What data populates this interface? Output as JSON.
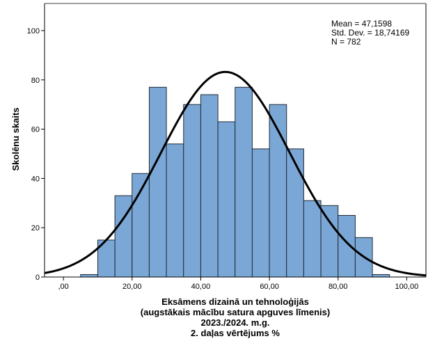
{
  "chart_data": {
    "type": "bar",
    "subtype": "histogram",
    "bin_width": 5,
    "bins": [
      {
        "from": 5,
        "to": 10,
        "count": 1
      },
      {
        "from": 10,
        "to": 15,
        "count": 15
      },
      {
        "from": 15,
        "to": 20,
        "count": 33
      },
      {
        "from": 20,
        "to": 25,
        "count": 42
      },
      {
        "from": 25,
        "to": 30,
        "count": 77
      },
      {
        "from": 30,
        "to": 35,
        "count": 54
      },
      {
        "from": 35,
        "to": 40,
        "count": 70
      },
      {
        "from": 40,
        "to": 45,
        "count": 74
      },
      {
        "from": 45,
        "to": 50,
        "count": 63
      },
      {
        "from": 50,
        "to": 55,
        "count": 77
      },
      {
        "from": 55,
        "to": 60,
        "count": 52
      },
      {
        "from": 60,
        "to": 65,
        "count": 70
      },
      {
        "from": 65,
        "to": 70,
        "count": 52
      },
      {
        "from": 70,
        "to": 75,
        "count": 31
      },
      {
        "from": 75,
        "to": 80,
        "count": 29
      },
      {
        "from": 80,
        "to": 85,
        "count": 25
      },
      {
        "from": 85,
        "to": 90,
        "count": 16
      },
      {
        "from": 90,
        "to": 95,
        "count": 1
      }
    ],
    "normal_curve": {
      "mean": 47.1598,
      "sd": 18.74169,
      "n": 782
    },
    "stats_lines": [
      "Mean = 47,1598",
      "Std. Dev. = 18,74169",
      "N = 782"
    ],
    "xlabel_lines": [
      "Eksāmens dizainā un tehnoloģijās",
      "(augstākais mācību satura apguves līmenis)",
      "2023./2024. m.g.",
      "2. daļas vērtējums %"
    ],
    "ylabel": "Skolēnu skaits",
    "x_ticks": [
      {
        "value": 0,
        "label": ",00"
      },
      {
        "value": 20,
        "label": "20,00"
      },
      {
        "value": 40,
        "label": "40,00"
      },
      {
        "value": 60,
        "label": "60,00"
      },
      {
        "value": 80,
        "label": "80,00"
      },
      {
        "value": 100,
        "label": "100,00"
      }
    ],
    "y_ticks": [
      {
        "value": 0,
        "label": "0"
      },
      {
        "value": 20,
        "label": "20"
      },
      {
        "value": 40,
        "label": "40"
      },
      {
        "value": 60,
        "label": "60"
      },
      {
        "value": 80,
        "label": "80"
      },
      {
        "value": 100,
        "label": "100"
      }
    ],
    "xlim": [
      -5.5,
      105.6
    ],
    "ylim": [
      0,
      111
    ],
    "grid": false,
    "colors": {
      "bar_fill": "#7BA7D6",
      "bar_edge": "#1F2A36",
      "curve": "#000000",
      "frame": "#000000",
      "frame_top": "#808080"
    }
  }
}
